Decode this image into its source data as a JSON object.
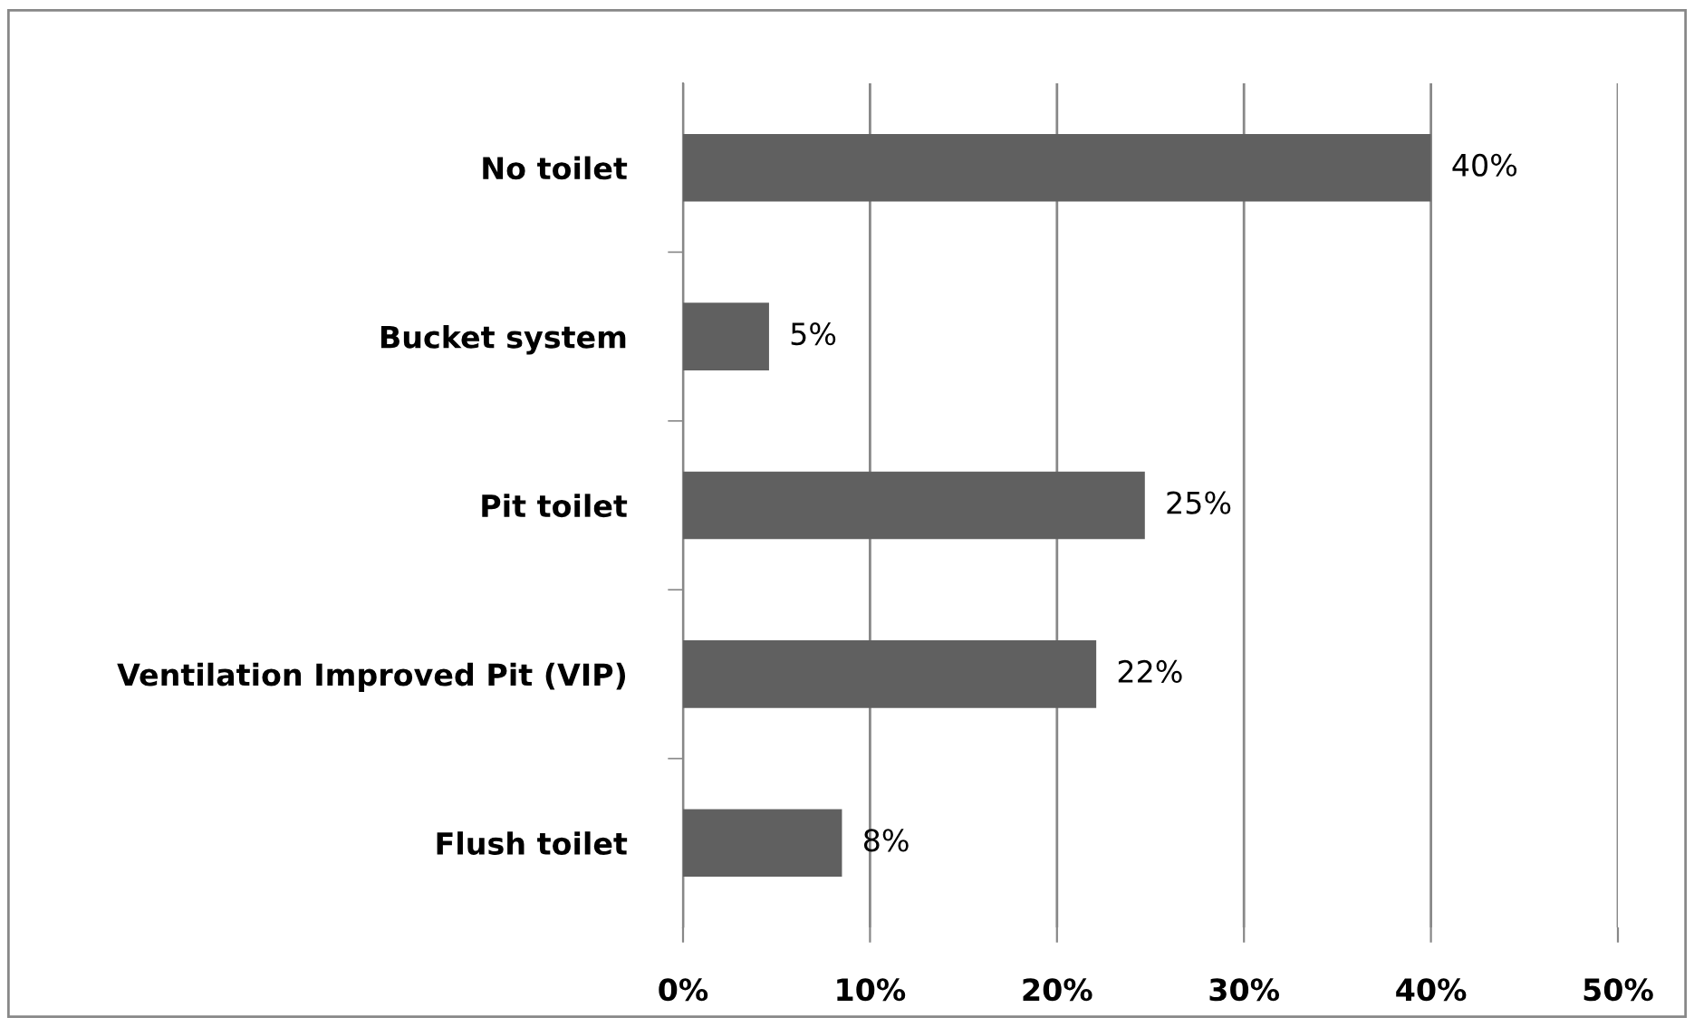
{
  "chart_data": {
    "type": "bar",
    "orientation": "horizontal",
    "categories": [
      "No toilet",
      "Bucket system",
      "Pit toilet",
      "Ventilation Improved Pit (VIP)",
      "Flush toilet"
    ],
    "values": [
      40,
      4.6,
      24.7,
      22.1,
      8.5
    ],
    "value_labels": [
      "40%",
      "5%",
      "25%",
      "22%",
      "8%"
    ],
    "color": "#606060",
    "xlim": [
      0,
      50
    ],
    "xticks": [
      {
        "value": 0,
        "label": "0%"
      },
      {
        "value": 10,
        "label": "10%"
      },
      {
        "value": 20,
        "label": "20%"
      },
      {
        "value": 30,
        "label": "30%"
      },
      {
        "value": 40,
        "label": "40%"
      },
      {
        "value": 50,
        "label": "50%"
      }
    ],
    "grid": "x",
    "legend": false
  }
}
